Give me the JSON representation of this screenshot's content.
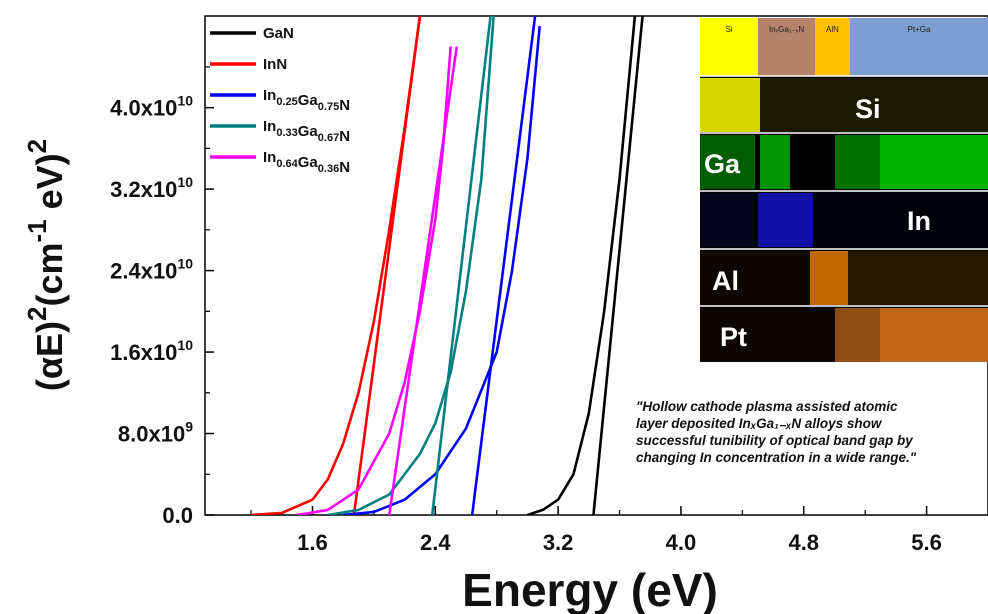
{
  "chart_data": {
    "type": "line",
    "xlabel": "Energy (eV)",
    "ylabel": "(αE)²(cm⁻¹ eV)²",
    "xlim": [
      0.9,
      6.0
    ],
    "ylim": [
      0,
      49000000000.0
    ],
    "x_ticks": [
      1.6,
      2.4,
      3.2,
      4.0,
      4.8,
      5.6
    ],
    "x_tick_labels": [
      "1.6",
      "2.4",
      "3.2",
      "4.0",
      "4.8",
      "5.6"
    ],
    "y_ticks": [
      0,
      8000000000.0,
      16000000000.0,
      24000000000.0,
      32000000000.0,
      40000000000.0
    ],
    "y_tick_labels": [
      {
        "mant": "0.0",
        "exp": ""
      },
      {
        "mant": "8.0x10",
        "exp": "9"
      },
      {
        "mant": "1.6x10",
        "exp": "10"
      },
      {
        "mant": "2.4x10",
        "exp": "10"
      },
      {
        "mant": "3.2x10",
        "exp": "10"
      },
      {
        "mant": "4.0x10",
        "exp": "10"
      }
    ],
    "legend_position": "top-left",
    "series": [
      {
        "name": "GaN",
        "color": "#000000",
        "x": [
          3.0,
          3.1,
          3.2,
          3.3,
          3.4,
          3.5,
          3.6,
          3.7
        ],
        "y": [
          0,
          500000000.0,
          1500000000.0,
          4000000000.0,
          10000000000.0,
          20000000000.0,
          33000000000.0,
          49000000000.0
        ],
        "fit": {
          "x": [
            3.43,
            3.75
          ],
          "y": [
            0,
            49000000000.0
          ]
        }
      },
      {
        "name": "InN",
        "color": "#ff0000",
        "x": [
          1.2,
          1.4,
          1.6,
          1.7,
          1.8,
          1.9,
          2.0,
          2.1,
          2.2,
          2.3
        ],
        "y": [
          0,
          200000000.0,
          1500000000.0,
          3500000000.0,
          7000000000.0,
          12000000000.0,
          19000000000.0,
          28000000000.0,
          38000000000.0,
          49000000000.0
        ],
        "fit": {
          "x": [
            1.87,
            2.3
          ],
          "y": [
            0,
            49000000000.0
          ]
        }
      },
      {
        "name": "In0.25Ga0.75N",
        "color": "#0000ff",
        "x": [
          1.8,
          2.0,
          2.2,
          2.4,
          2.6,
          2.8,
          2.9,
          3.0,
          3.08
        ],
        "y": [
          0,
          300000000.0,
          1500000000.0,
          4000000000.0,
          8500000000.0,
          16000000000.0,
          24000000000.0,
          35000000000.0,
          48000000000.0
        ],
        "fit": {
          "x": [
            2.64,
            3.05
          ],
          "y": [
            0,
            49000000000.0
          ]
        }
      },
      {
        "name": "In0.33Ga0.67N",
        "color": "#008080",
        "x": [
          1.7,
          1.9,
          2.1,
          2.3,
          2.4,
          2.5,
          2.6,
          2.7,
          2.78
        ],
        "y": [
          0,
          500000000.0,
          2000000000.0,
          6000000000.0,
          9000000000.0,
          14000000000.0,
          22000000000.0,
          33000000000.0,
          49000000000.0
        ],
        "fit": {
          "x": [
            2.38,
            2.76
          ],
          "y": [
            0,
            49000000000.0
          ]
        }
      },
      {
        "name": "In0.64Ga0.36N",
        "color": "#ff00ff",
        "x": [
          1.5,
          1.7,
          1.9,
          2.1,
          2.2,
          2.3,
          2.4,
          2.45,
          2.5
        ],
        "y": [
          0,
          500000000.0,
          2500000000.0,
          8000000000.0,
          13000000000.0,
          20000000000.0,
          29000000000.0,
          36000000000.0,
          46000000000.0
        ],
        "fit": {
          "x": [
            2.1,
            2.54
          ],
          "y": [
            0,
            46000000000.0
          ]
        }
      }
    ]
  },
  "legend": [
    {
      "base": "GaN",
      "color": "#000000",
      "parts": [
        {
          "t": "GaN",
          "sub": false
        }
      ]
    },
    {
      "base": "InN",
      "color": "#ff0000",
      "parts": [
        {
          "t": "InN",
          "sub": false
        }
      ]
    },
    {
      "base": "In0.25Ga0.75N",
      "color": "#0000ff",
      "parts": [
        {
          "t": "In",
          "sub": false
        },
        {
          "t": "0.25",
          "sub": true
        },
        {
          "t": "Ga",
          "sub": false
        },
        {
          "t": "0.75",
          "sub": true
        },
        {
          "t": "N",
          "sub": false
        }
      ]
    },
    {
      "base": "In0.33Ga0.67N",
      "color": "#008080",
      "parts": [
        {
          "t": "In",
          "sub": false
        },
        {
          "t": "0.33",
          "sub": true
        },
        {
          "t": "Ga",
          "sub": false
        },
        {
          "t": "0.67",
          "sub": true
        },
        {
          "t": "N",
          "sub": false
        }
      ]
    },
    {
      "base": "In0.64Ga0.36N",
      "color": "#ff00ff",
      "parts": [
        {
          "t": "In",
          "sub": false
        },
        {
          "t": "0.64",
          "sub": true
        },
        {
          "t": "Ga",
          "sub": false
        },
        {
          "t": "0.36",
          "sub": true
        },
        {
          "t": "N",
          "sub": false
        }
      ]
    }
  ],
  "annotation": {
    "lines": [
      "\"Hollow cathode plasma assisted atomic",
      "layer deposited InₓGa₁₋ₓN alloys show",
      "successful tunibility of optical band gap by",
      "changing In concentration in a wide range.\""
    ]
  },
  "inset": {
    "layers": [
      {
        "label": "Si",
        "color": "#ffff00"
      },
      {
        "label": "InₓGa₁₋ₓN",
        "color": "#b5836a"
      },
      {
        "label": "AlN",
        "color": "#ffc000"
      },
      {
        "label": "Pt+Ga",
        "color": "#7a9fd0"
      }
    ],
    "maps": [
      {
        "label": "Si",
        "color": "#d6d600"
      },
      {
        "label": "Ga",
        "color": "#00d000"
      },
      {
        "label": "In",
        "color": "#1a1aff"
      },
      {
        "label": "Al",
        "color": "#ff8c00"
      },
      {
        "label": "Pt",
        "color": "#f08020"
      }
    ]
  }
}
